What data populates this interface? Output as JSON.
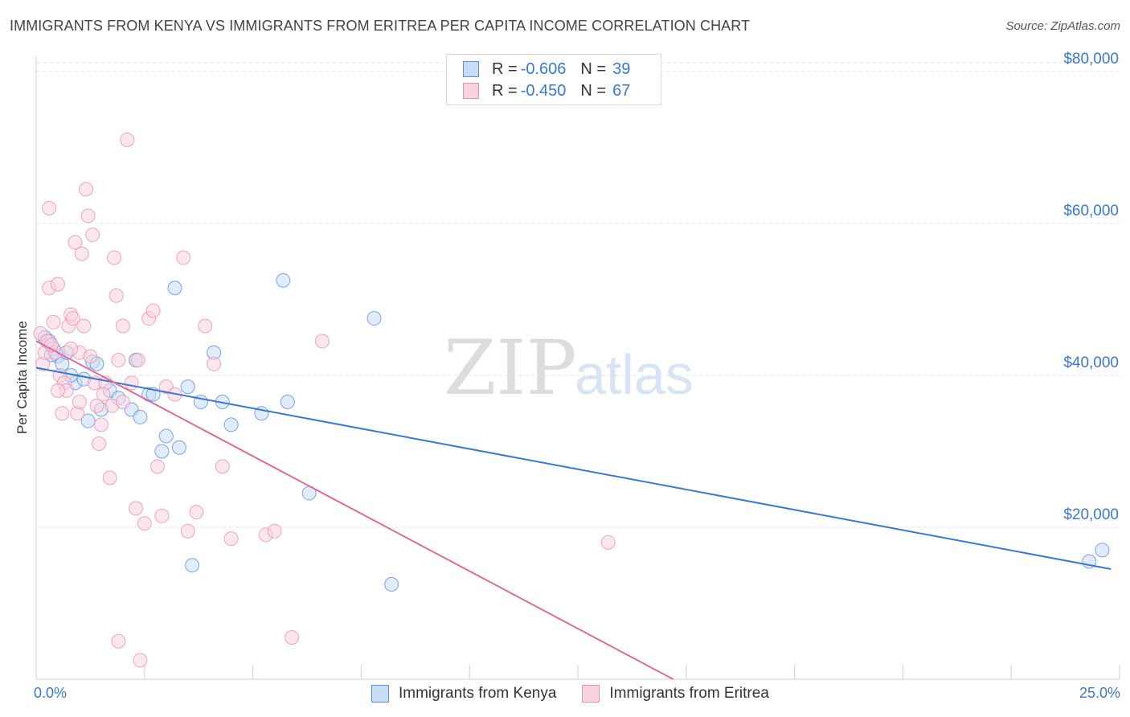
{
  "title": "IMMIGRANTS FROM KENYA VS IMMIGRANTS FROM ERITREA PER CAPITA INCOME CORRELATION CHART",
  "source": "Source: ZipAtlas.com",
  "watermark": {
    "zip": "ZIP",
    "atlas": "atlas"
  },
  "legend_top": [
    {
      "r_label": "R = ",
      "r_value": "-0.606",
      "n_label": "N = ",
      "n_value": "39"
    },
    {
      "r_label": "R = ",
      "r_value": "-0.450",
      "n_label": "N = ",
      "n_value": "67"
    }
  ],
  "chart_data": {
    "type": "scatter",
    "title": "IMMIGRANTS FROM KENYA VS IMMIGRANTS FROM ERITREA PER CAPITA INCOME CORRELATION CHART",
    "xlabel": "",
    "ylabel": "Per Capita Income",
    "xlim": [
      0,
      25
    ],
    "ylim": [
      0,
      82000
    ],
    "x_tick_labels": [
      "0.0%",
      "25.0%"
    ],
    "y_ticks": [
      20000,
      40000,
      60000,
      80000
    ],
    "y_tick_labels": [
      "$20,000",
      "$40,000",
      "$60,000",
      "$80,000"
    ],
    "grid": true,
    "legend_position": "bottom",
    "series": [
      {
        "name": "Immigrants from Kenya",
        "color": "#5b8fd9",
        "fill": "#c9dcf5",
        "trend": {
          "x": [
            0,
            24.8
          ],
          "y": [
            41000,
            14500
          ]
        },
        "points": [
          [
            0.2,
            45000
          ],
          [
            0.3,
            44500
          ],
          [
            0.4,
            43500
          ],
          [
            0.5,
            42500
          ],
          [
            0.6,
            41500
          ],
          [
            0.9,
            39000
          ],
          [
            1.1,
            39500
          ],
          [
            1.3,
            41800
          ],
          [
            1.4,
            41500
          ],
          [
            1.5,
            35500
          ],
          [
            1.7,
            38000
          ],
          [
            1.9,
            37000
          ],
          [
            2.2,
            35500
          ],
          [
            2.3,
            42000
          ],
          [
            2.4,
            34500
          ],
          [
            2.6,
            37500
          ],
          [
            2.9,
            30000
          ],
          [
            3.0,
            32000
          ],
          [
            3.3,
            30500
          ],
          [
            3.5,
            38500
          ],
          [
            3.6,
            15000
          ],
          [
            3.8,
            36500
          ],
          [
            4.1,
            43000
          ],
          [
            4.3,
            36500
          ],
          [
            4.5,
            33500
          ],
          [
            3.2,
            51500
          ],
          [
            5.2,
            35000
          ],
          [
            5.7,
            52500
          ],
          [
            5.8,
            36500
          ],
          [
            6.3,
            24500
          ],
          [
            7.8,
            47500
          ],
          [
            8.2,
            12500
          ],
          [
            24.3,
            15500
          ],
          [
            24.6,
            17000
          ],
          [
            0.8,
            40000
          ],
          [
            1.2,
            34000
          ],
          [
            2.7,
            37500
          ],
          [
            0.7,
            43000
          ],
          [
            0.35,
            42700
          ]
        ]
      },
      {
        "name": "Immigrants from Eritrea",
        "color": "#e890b0",
        "fill": "#f9d2e0",
        "trend": {
          "x": [
            0,
            14.7
          ],
          "y": [
            44500,
            0
          ]
        },
        "points": [
          [
            0.1,
            45500
          ],
          [
            0.15,
            41500
          ],
          [
            0.2,
            43000
          ],
          [
            0.25,
            44500
          ],
          [
            0.3,
            51500
          ],
          [
            0.3,
            62000
          ],
          [
            0.4,
            47000
          ],
          [
            0.5,
            52000
          ],
          [
            0.55,
            40000
          ],
          [
            0.6,
            35000
          ],
          [
            0.65,
            39000
          ],
          [
            0.7,
            38000
          ],
          [
            0.75,
            46500
          ],
          [
            0.8,
            48000
          ],
          [
            0.85,
            47500
          ],
          [
            0.9,
            57500
          ],
          [
            0.95,
            35000
          ],
          [
            1.0,
            43000
          ],
          [
            1.05,
            56000
          ],
          [
            1.1,
            46500
          ],
          [
            1.15,
            64500
          ],
          [
            1.2,
            61000
          ],
          [
            1.25,
            42500
          ],
          [
            1.3,
            58500
          ],
          [
            1.35,
            39000
          ],
          [
            1.4,
            36000
          ],
          [
            1.45,
            31000
          ],
          [
            1.5,
            33500
          ],
          [
            1.6,
            39000
          ],
          [
            1.7,
            26500
          ],
          [
            1.75,
            36000
          ],
          [
            1.8,
            55500
          ],
          [
            1.85,
            50500
          ],
          [
            1.9,
            5000
          ],
          [
            2.0,
            46500
          ],
          [
            2.1,
            71000
          ],
          [
            2.2,
            39000
          ],
          [
            2.3,
            22500
          ],
          [
            2.4,
            2500
          ],
          [
            2.5,
            20500
          ],
          [
            2.6,
            47500
          ],
          [
            2.7,
            48500
          ],
          [
            2.8,
            28000
          ],
          [
            2.9,
            21500
          ],
          [
            3.0,
            38500
          ],
          [
            3.2,
            37500
          ],
          [
            3.4,
            55500
          ],
          [
            3.5,
            19500
          ],
          [
            3.7,
            22000
          ],
          [
            3.9,
            46500
          ],
          [
            4.1,
            41500
          ],
          [
            4.3,
            28000
          ],
          [
            4.5,
            18500
          ],
          [
            5.3,
            19000
          ],
          [
            5.5,
            19500
          ],
          [
            5.9,
            5500
          ],
          [
            6.6,
            44500
          ],
          [
            13.2,
            18000
          ],
          [
            0.45,
            43000
          ],
          [
            1.55,
            37500
          ],
          [
            0.35,
            44000
          ],
          [
            0.5,
            38000
          ],
          [
            2.0,
            36500
          ],
          [
            2.35,
            42000
          ],
          [
            0.8,
            43500
          ],
          [
            1.9,
            42000
          ],
          [
            1.0,
            36500
          ]
        ]
      }
    ]
  }
}
